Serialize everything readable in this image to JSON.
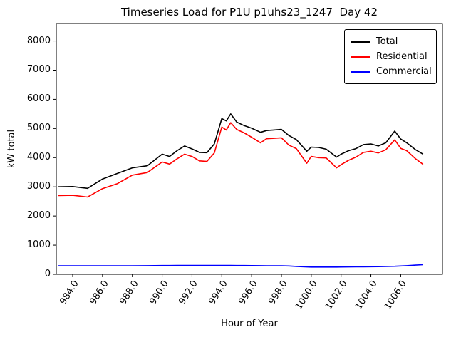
{
  "chart_data": {
    "type": "line",
    "title": "Timeseries Load for P1U p1uhs23_1247  Day 42",
    "xlabel": "Hour of Year",
    "ylabel": "kW total",
    "xlim": [
      982.9,
      1008.8
    ],
    "ylim": [
      0,
      8600
    ],
    "grid": false,
    "legend_position": "upper right",
    "x_ticks": [
      984,
      986,
      988,
      990,
      992,
      994,
      996,
      998,
      1000,
      1002,
      1004,
      1006
    ],
    "x_tick_labels": [
      "984.0",
      "986.0",
      "988.0",
      "990.0",
      "992.0",
      "994.0",
      "996.0",
      "998.0",
      "1000.0",
      "1002.0",
      "1004.0",
      "1006.0"
    ],
    "y_ticks": [
      0,
      1000,
      2000,
      3000,
      4000,
      5000,
      6000,
      7000,
      8000
    ],
    "y_tick_labels": [
      "0",
      "1000",
      "2000",
      "3000",
      "4000",
      "5000",
      "6000",
      "7000",
      "8000"
    ],
    "x": [
      983,
      984,
      985,
      986,
      987,
      988,
      989,
      990,
      990.5,
      991,
      991.5,
      992,
      992.5,
      993,
      993.5,
      994,
      994.3,
      994.6,
      995,
      995.5,
      996,
      996.6,
      997,
      998,
      998.5,
      999,
      999.7,
      1000,
      1000.5,
      1001,
      1001.7,
      1002,
      1002.5,
      1003,
      1003.5,
      1004,
      1004.5,
      1005,
      1005.6,
      1006,
      1006.4,
      1007,
      1007.5
    ],
    "series": [
      {
        "name": "Total",
        "color": "#000000",
        "values": [
          3000,
          3010,
          2950,
          3270,
          3460,
          3650,
          3720,
          4120,
          4040,
          4240,
          4400,
          4300,
          4180,
          4170,
          4470,
          5340,
          5260,
          5500,
          5220,
          5100,
          5010,
          4870,
          4930,
          4970,
          4760,
          4620,
          4220,
          4360,
          4350,
          4290,
          4020,
          4120,
          4240,
          4310,
          4450,
          4470,
          4400,
          4510,
          4910,
          4640,
          4510,
          4270,
          4120
        ]
      },
      {
        "name": "Residential",
        "color": "#ff0000",
        "values": [
          2700,
          2710,
          2650,
          2940,
          3110,
          3400,
          3490,
          3850,
          3780,
          3960,
          4120,
          4040,
          3890,
          3870,
          4160,
          5050,
          4950,
          5200,
          4970,
          4850,
          4700,
          4510,
          4650,
          4680,
          4430,
          4310,
          3810,
          4040,
          4000,
          3990,
          3650,
          3760,
          3910,
          4020,
          4180,
          4220,
          4160,
          4270,
          4610,
          4320,
          4240,
          3960,
          3770
        ]
      },
      {
        "name": "Commercial",
        "color": "#0000ff",
        "values": [
          290,
          290,
          290,
          290,
          292,
          293,
          295,
          300,
          300,
          302,
          303,
          305,
          305,
          305,
          305,
          303,
          302,
          302,
          300,
          300,
          298,
          295,
          293,
          290,
          285,
          270,
          255,
          250,
          248,
          248,
          250,
          252,
          255,
          258,
          260,
          262,
          264,
          268,
          275,
          285,
          295,
          315,
          330
        ]
      }
    ]
  }
}
